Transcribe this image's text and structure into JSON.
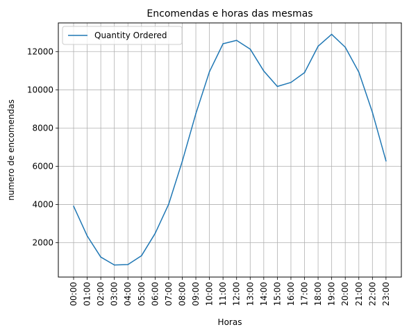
{
  "chart_data": {
    "type": "line",
    "title": "Encomendas e horas das mesmas",
    "xlabel": "Horas",
    "ylabel": "numero de encomendas",
    "categories": [
      "00:00",
      "01:00",
      "02:00",
      "03:00",
      "04:00",
      "05:00",
      "06:00",
      "07:00",
      "08:00",
      "09:00",
      "10:00",
      "11:00",
      "12:00",
      "13:00",
      "14:00",
      "15:00",
      "16:00",
      "17:00",
      "18:00",
      "19:00",
      "20:00",
      "21:00",
      "22:00",
      "23:00"
    ],
    "series": [
      {
        "name": "Quantity Ordered",
        "color": "#1f77b4",
        "values": [
          3910,
          2350,
          1245,
          831,
          854,
          1321,
          2482,
          4011,
          6256,
          8748,
          10944,
          12411,
          12587,
          12129,
          10984,
          10175,
          10384,
          10899,
          12280,
          12905,
          12228,
          10921,
          8822,
          6275
        ]
      }
    ],
    "yticks": [
      2000,
      4000,
      6000,
      8000,
      10000,
      12000
    ],
    "ylim": [
      200,
      13500
    ],
    "grid": true,
    "legend": "top-left"
  }
}
